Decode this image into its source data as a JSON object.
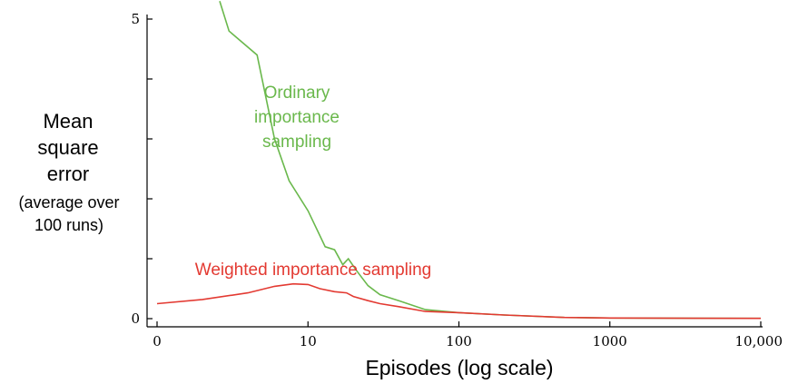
{
  "chart_data": {
    "type": "line",
    "xlabel": "Episodes (log scale)",
    "ylabel_lines": [
      "Mean",
      "square",
      "error"
    ],
    "ylabel_note_lines": [
      "(average over",
      "100 runs)"
    ],
    "x_scale": "log",
    "xlim": [
      1,
      10000
    ],
    "ylim": [
      0,
      5
    ],
    "x_ticks": [
      {
        "value": 1,
        "label": "0"
      },
      {
        "value": 10,
        "label": "10"
      },
      {
        "value": 100,
        "label": "100"
      },
      {
        "value": 1000,
        "label": "1000"
      },
      {
        "value": 10000,
        "label": "10,000"
      }
    ],
    "y_ticks": [
      {
        "value": 0,
        "label": "0"
      },
      {
        "value": 1,
        "label": ""
      },
      {
        "value": 2,
        "label": ""
      },
      {
        "value": 3,
        "label": ""
      },
      {
        "value": 4,
        "label": ""
      },
      {
        "value": 5,
        "label": "5"
      }
    ],
    "grid": false,
    "series": [
      {
        "name_lines": [
          "Ordinary",
          "importance",
          "sampling"
        ],
        "color": "#6ab84c",
        "x": [
          2.6,
          3,
          4.6,
          6,
          7.5,
          10,
          13,
          15,
          17,
          18.5,
          21,
          25,
          30,
          40,
          60,
          100,
          200,
          500,
          1000,
          10000
        ],
        "y": [
          5.3,
          4.8,
          4.4,
          3.0,
          2.3,
          1.8,
          1.2,
          1.15,
          0.9,
          1.0,
          0.8,
          0.55,
          0.4,
          0.3,
          0.15,
          0.1,
          0.06,
          0.02,
          0.01,
          0.005
        ]
      },
      {
        "name": "Weighted importance sampling",
        "color": "#e33a32",
        "x": [
          1,
          2,
          4,
          6,
          8,
          10,
          12,
          15,
          18,
          20,
          25,
          30,
          40,
          60,
          100,
          200,
          500,
          1000,
          10000
        ],
        "y": [
          0.25,
          0.32,
          0.43,
          0.54,
          0.58,
          0.57,
          0.5,
          0.45,
          0.43,
          0.37,
          0.3,
          0.25,
          0.2,
          0.12,
          0.1,
          0.06,
          0.02,
          0.01,
          0.005
        ]
      }
    ]
  }
}
